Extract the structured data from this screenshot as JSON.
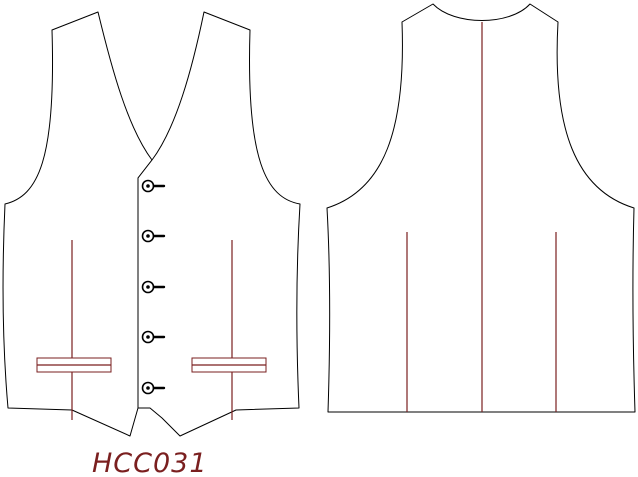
{
  "style_code": "HCC031",
  "garment": {
    "front_buttons": 5,
    "front_welt_pockets": 2,
    "back_center_seam": true
  },
  "colors": {
    "outline": "#000000",
    "seam": "#7a1f1f",
    "label": "#7a1f1f",
    "fill": "#ffffff"
  }
}
